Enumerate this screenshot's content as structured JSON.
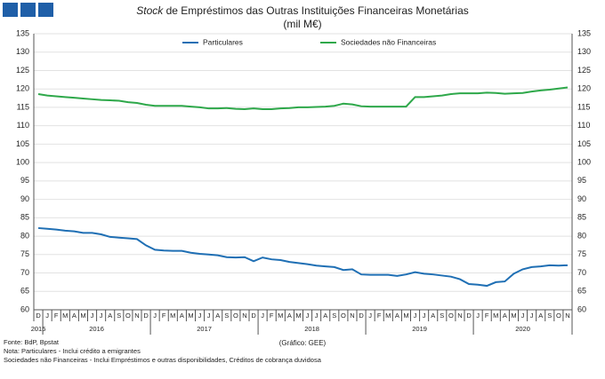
{
  "chart_data": {
    "type": "line",
    "title_italic": "Stock",
    "title": "de Empréstimos das Outras Instituições Financeiras Monetárias",
    "subtitle": "(mil M€)",
    "categories": [
      "D",
      "J",
      "F",
      "M",
      "A",
      "M",
      "J",
      "J",
      "A",
      "S",
      "O",
      "N",
      "D",
      "J",
      "F",
      "M",
      "A",
      "M",
      "J",
      "J",
      "A",
      "S",
      "O",
      "N",
      "D",
      "J",
      "F",
      "M",
      "A",
      "M",
      "J",
      "J",
      "A",
      "S",
      "O",
      "N",
      "D",
      "J",
      "F",
      "M",
      "A",
      "M",
      "J",
      "J",
      "A",
      "S",
      "O",
      "N",
      "D",
      "J",
      "F",
      "M",
      "A",
      "M",
      "J",
      "J",
      "A",
      "S",
      "O",
      "N"
    ],
    "years": [
      "2015",
      "2016",
      "2017",
      "2018",
      "2019",
      "2020"
    ],
    "series": [
      {
        "name": "Particulares",
        "color": "#1f6fb4",
        "values": [
          82.2,
          82,
          81.8,
          81.5,
          81.3,
          80.9,
          80.9,
          80.5,
          79.8,
          79.6,
          79.4,
          79.2,
          77.5,
          76.3,
          76.1,
          76,
          76,
          75.5,
          75.2,
          75,
          74.8,
          74.3,
          74.2,
          74.3,
          73.2,
          74.2,
          73.7,
          73.5,
          73,
          72.7,
          72.4,
          72,
          71.8,
          71.6,
          70.8,
          71,
          69.6,
          69.5,
          69.5,
          69.5,
          69.2,
          69.6,
          70.2,
          69.8,
          69.6,
          69.3,
          69,
          68.3,
          67,
          66.8,
          66.5,
          67.5,
          67.7,
          69.8,
          71,
          71.6,
          71.8,
          72.1,
          72,
          72.1
        ]
      },
      {
        "name": "Sociedades não Financeiras",
        "color": "#2ea84a",
        "values": [
          118.6,
          118.2,
          118,
          117.8,
          117.6,
          117.4,
          117.2,
          117,
          116.9,
          116.8,
          116.4,
          116.2,
          115.7,
          115.4,
          115.4,
          115.4,
          115.4,
          115.2,
          115,
          114.7,
          114.7,
          114.8,
          114.6,
          114.5,
          114.7,
          114.5,
          114.5,
          114.7,
          114.8,
          115,
          115,
          115.1,
          115.2,
          115.4,
          116,
          115.8,
          115.3,
          115.2,
          115.2,
          115.2,
          115.2,
          115.2,
          117.8,
          117.8,
          118,
          118.2,
          118.6,
          118.8,
          118.8,
          118.8,
          119,
          118.9,
          118.7,
          118.8,
          118.9,
          119.3,
          119.6,
          119.8,
          120.1,
          120.4
        ]
      }
    ],
    "ylim": [
      60,
      135
    ],
    "yticks": [
      60,
      65,
      70,
      75,
      80,
      85,
      90,
      95,
      100,
      105,
      110,
      115,
      120,
      125,
      130,
      135
    ],
    "y2lim": [
      60,
      135
    ],
    "y2ticks": [
      60,
      65,
      70,
      75,
      80,
      85,
      90,
      95,
      100,
      105,
      110,
      115,
      120,
      125,
      130,
      135
    ],
    "grid": true,
    "credit": "(Gráfico: GEE)",
    "notes": [
      "Fonte: BdP, Bpstat",
      "Nota: Particulares - Inclui crédito a emigrantes",
      "Sociedades não Financeiras - Inclui Empréstimos e outras disponibilidades, Créditos de cobrança duvidosa"
    ]
  }
}
